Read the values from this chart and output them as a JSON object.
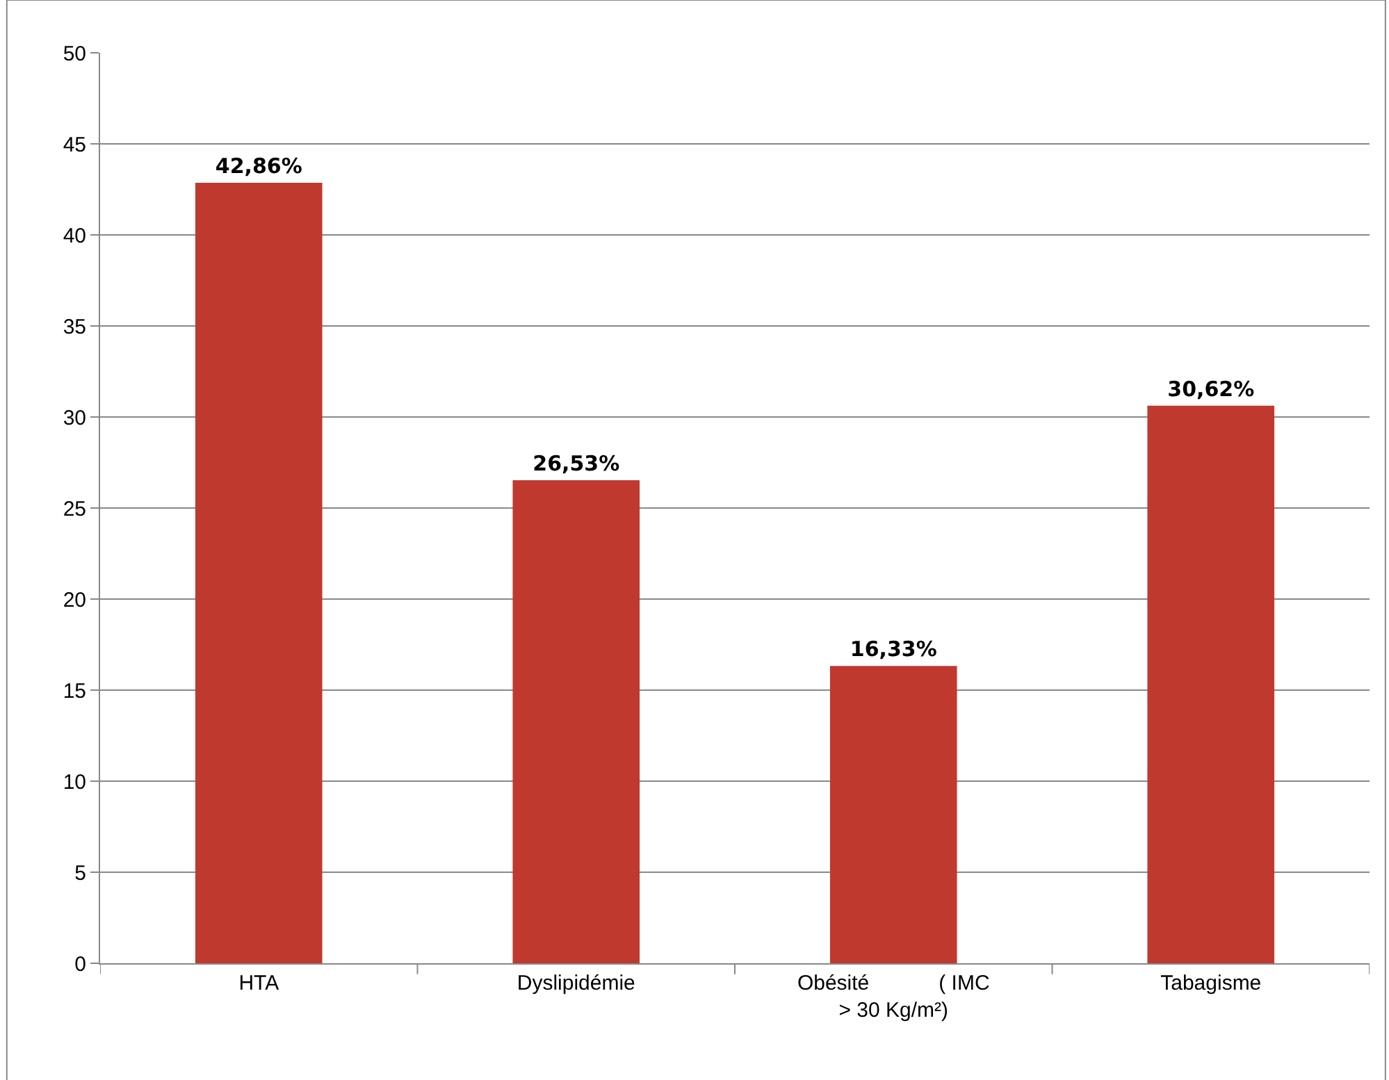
{
  "chart_data": {
    "type": "bar",
    "categories": [
      "HTA",
      "Dyslipidémie",
      "Obésité            ( IMC\n> 30 Kg/m²)",
      "Tabagisme"
    ],
    "values": [
      42.86,
      26.53,
      16.33,
      30.62
    ],
    "value_labels": [
      "42,86%",
      "26,53%",
      "16,33%",
      "30,62%"
    ],
    "color": "#c0392f",
    "ylim": [
      0,
      50
    ],
    "yticks": [
      0,
      5,
      10,
      15,
      20,
      25,
      30,
      35,
      40,
      45,
      50
    ],
    "grid": "y"
  }
}
